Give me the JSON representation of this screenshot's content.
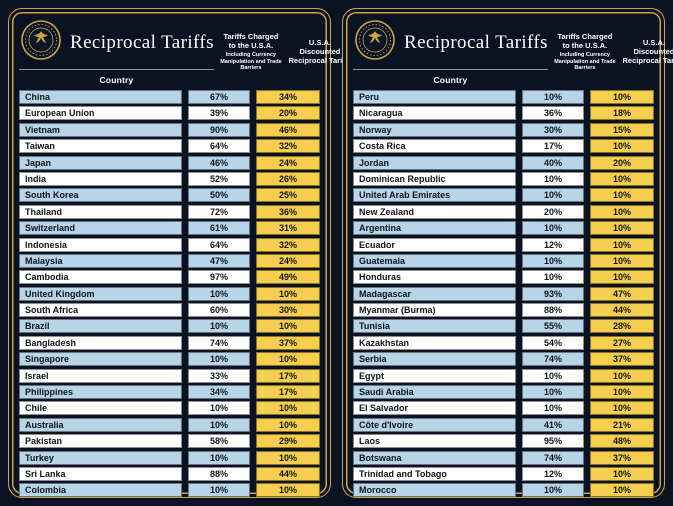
{
  "header": {
    "title": "Reciprocal Tariffs",
    "country_label": "Country",
    "charged_line1": "Tariffs Charged",
    "charged_line2": "to the U.S.A.",
    "charged_subtitle": "Including Currency Manipulation and Trade Barriers",
    "reciprocal_line1": "U.S.A. Discounted",
    "reciprocal_line2": "Reciprocal Tariffs"
  },
  "colors": {
    "background": "#0b1322",
    "gold_border": "#c8a44e",
    "row_blue": "#b7d4e8",
    "row_white": "#ffffff",
    "reciprocal_gold": "#f5ce4f",
    "header_text": "#ffffff",
    "cell_text": "#101418"
  },
  "icons": {
    "seal": "presidential-seal-icon"
  },
  "chart_data": {
    "type": "table",
    "title": "Reciprocal Tariffs",
    "columns": [
      "Country",
      "Tariffs Charged to the U.S.A. Including Currency Manipulation and Trade Barriers",
      "U.S.A. Discounted Reciprocal Tariffs"
    ],
    "panels": [
      {
        "rows": [
          [
            "China",
            "67%",
            "34%"
          ],
          [
            "European Union",
            "39%",
            "20%"
          ],
          [
            "Vietnam",
            "90%",
            "46%"
          ],
          [
            "Taiwan",
            "64%",
            "32%"
          ],
          [
            "Japan",
            "46%",
            "24%"
          ],
          [
            "India",
            "52%",
            "26%"
          ],
          [
            "South Korea",
            "50%",
            "25%"
          ],
          [
            "Thailand",
            "72%",
            "36%"
          ],
          [
            "Switzerland",
            "61%",
            "31%"
          ],
          [
            "Indonesia",
            "64%",
            "32%"
          ],
          [
            "Malaysia",
            "47%",
            "24%"
          ],
          [
            "Cambodia",
            "97%",
            "49%"
          ],
          [
            "United Kingdom",
            "10%",
            "10%"
          ],
          [
            "South Africa",
            "60%",
            "30%"
          ],
          [
            "Brazil",
            "10%",
            "10%"
          ],
          [
            "Bangladesh",
            "74%",
            "37%"
          ],
          [
            "Singapore",
            "10%",
            "10%"
          ],
          [
            "Israel",
            "33%",
            "17%"
          ],
          [
            "Philippines",
            "34%",
            "17%"
          ],
          [
            "Chile",
            "10%",
            "10%"
          ],
          [
            "Australia",
            "10%",
            "10%"
          ],
          [
            "Pakistan",
            "58%",
            "29%"
          ],
          [
            "Turkey",
            "10%",
            "10%"
          ],
          [
            "Sri Lanka",
            "88%",
            "44%"
          ],
          [
            "Colombia",
            "10%",
            "10%"
          ]
        ]
      },
      {
        "rows": [
          [
            "Peru",
            "10%",
            "10%"
          ],
          [
            "Nicaragua",
            "36%",
            "18%"
          ],
          [
            "Norway",
            "30%",
            "15%"
          ],
          [
            "Costa Rica",
            "17%",
            "10%"
          ],
          [
            "Jordan",
            "40%",
            "20%"
          ],
          [
            "Dominican Republic",
            "10%",
            "10%"
          ],
          [
            "United Arab Emirates",
            "10%",
            "10%"
          ],
          [
            "New Zealand",
            "20%",
            "10%"
          ],
          [
            "Argentina",
            "10%",
            "10%"
          ],
          [
            "Ecuador",
            "12%",
            "10%"
          ],
          [
            "Guatemala",
            "10%",
            "10%"
          ],
          [
            "Honduras",
            "10%",
            "10%"
          ],
          [
            "Madagascar",
            "93%",
            "47%"
          ],
          [
            "Myanmar (Burma)",
            "88%",
            "44%"
          ],
          [
            "Tunisia",
            "55%",
            "28%"
          ],
          [
            "Kazakhstan",
            "54%",
            "27%"
          ],
          [
            "Serbia",
            "74%",
            "37%"
          ],
          [
            "Egypt",
            "10%",
            "10%"
          ],
          [
            "Saudi Arabia",
            "10%",
            "10%"
          ],
          [
            "El Salvador",
            "10%",
            "10%"
          ],
          [
            "Côte d'Ivoire",
            "41%",
            "21%"
          ],
          [
            "Laos",
            "95%",
            "48%"
          ],
          [
            "Botswana",
            "74%",
            "37%"
          ],
          [
            "Trinidad and Tobago",
            "12%",
            "10%"
          ],
          [
            "Morocco",
            "10%",
            "10%"
          ]
        ]
      }
    ]
  }
}
